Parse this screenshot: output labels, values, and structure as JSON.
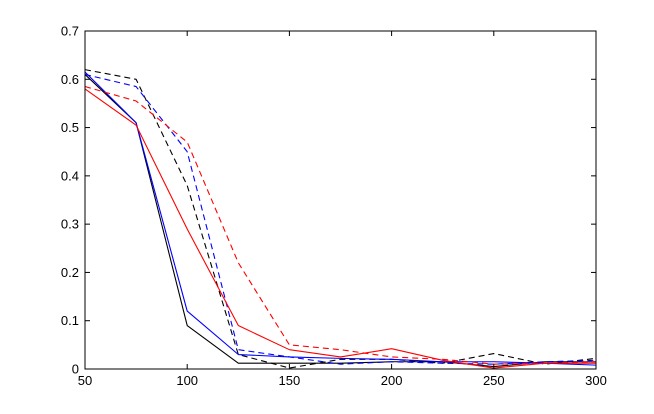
{
  "chart_data": {
    "type": "line",
    "title": "",
    "xlabel": "",
    "ylabel": "",
    "xlim": [
      50,
      300
    ],
    "ylim": [
      0,
      0.7
    ],
    "xticks": [
      50,
      100,
      150,
      200,
      250,
      300
    ],
    "yticks": [
      0,
      0.1,
      0.2,
      0.3,
      0.4,
      0.5,
      0.6,
      0.7
    ],
    "xtick_labels": [
      "50",
      "100",
      "150",
      "200",
      "250",
      "300"
    ],
    "ytick_labels": [
      "0",
      "0.1",
      "0.2",
      "0.3",
      "0.4",
      "0.5",
      "0.6",
      "0.7"
    ],
    "grid": false,
    "x": [
      50,
      75,
      100,
      125,
      150,
      175,
      200,
      225,
      250,
      275,
      300
    ],
    "series": [
      {
        "color": "#000000",
        "dash": false,
        "values": [
          0.61,
          0.51,
          0.09,
          0.012,
          0.012,
          0.012,
          0.015,
          0.015,
          0.005,
          0.015,
          0.015
        ]
      },
      {
        "color": "#000000",
        "dash": true,
        "values": [
          0.62,
          0.6,
          0.38,
          0.03,
          0.002,
          0.02,
          0.02,
          0.012,
          0.032,
          0.01,
          0.022
        ]
      },
      {
        "color": "#0000ff",
        "dash": false,
        "values": [
          0.615,
          0.51,
          0.12,
          0.03,
          0.025,
          0.022,
          0.02,
          0.015,
          0.015,
          0.012,
          0.008
        ]
      },
      {
        "color": "#0000ff",
        "dash": true,
        "values": [
          0.61,
          0.585,
          0.45,
          0.04,
          0.025,
          0.01,
          0.015,
          0.012,
          0.01,
          0.015,
          0.018
        ]
      },
      {
        "color": "#ff0000",
        "dash": false,
        "values": [
          0.58,
          0.505,
          0.29,
          0.09,
          0.04,
          0.025,
          0.042,
          0.018,
          0.002,
          0.012,
          0.012
        ]
      },
      {
        "color": "#ff0000",
        "dash": true,
        "values": [
          0.585,
          0.555,
          0.47,
          0.22,
          0.05,
          0.04,
          0.025,
          0.02,
          0.01,
          0.012,
          0.015
        ]
      }
    ]
  }
}
